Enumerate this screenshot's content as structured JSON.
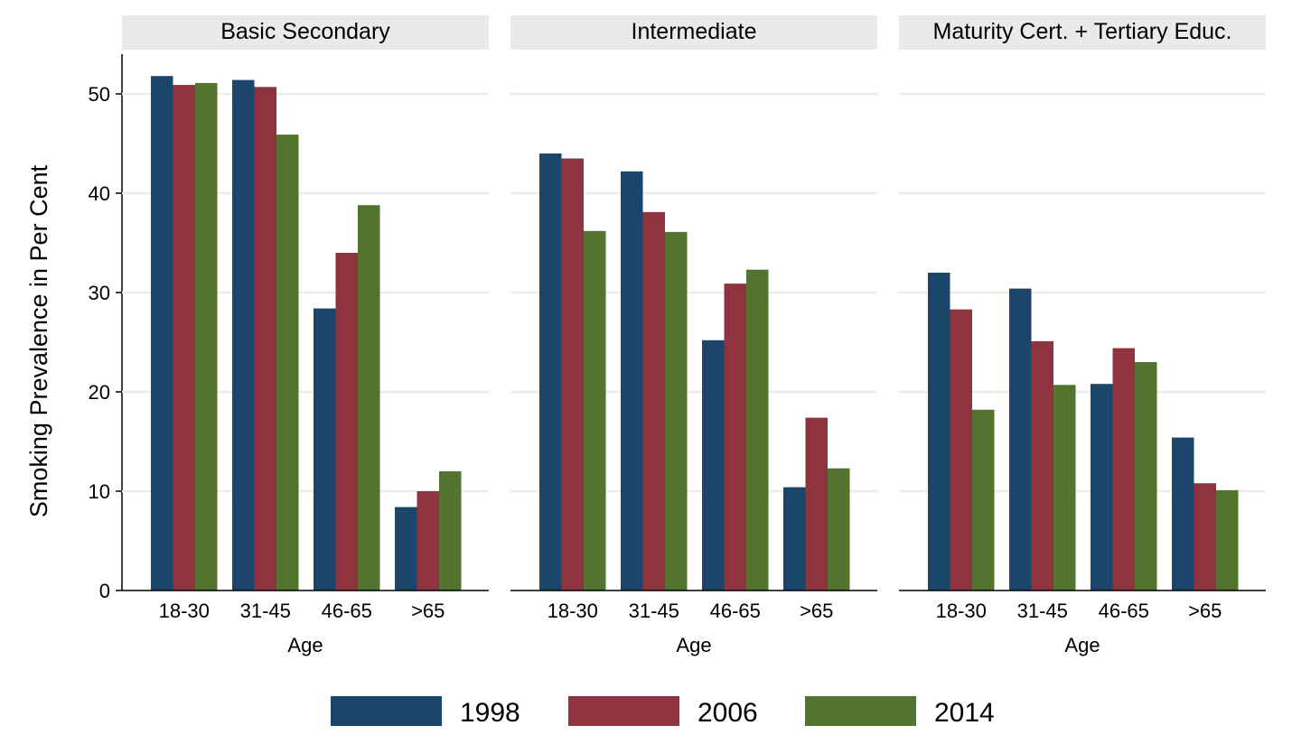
{
  "chart_data": {
    "type": "bar",
    "ylabel": "Smoking Prevalence in Per Cent",
    "ylim": [
      0,
      54
    ],
    "yticks": [
      0,
      10,
      20,
      30,
      40,
      50
    ],
    "grid": true,
    "legend_position": "bottom",
    "colors": {
      "1998": "#1c456b",
      "2006": "#8f343e",
      "2014": "#52742e"
    },
    "series_names": [
      "1998",
      "2006",
      "2014"
    ],
    "panels": [
      {
        "title": "Basic Secondary",
        "xlabel": "Age",
        "categories": [
          "18-30",
          "31-45",
          "46-65",
          ">65"
        ],
        "series": [
          {
            "name": "1998",
            "values": [
              51.8,
              51.4,
              28.4,
              8.4
            ]
          },
          {
            "name": "2006",
            "values": [
              50.9,
              50.7,
              34.0,
              10.0
            ]
          },
          {
            "name": "2014",
            "values": [
              51.1,
              45.9,
              38.8,
              12.0
            ]
          }
        ]
      },
      {
        "title": "Intermediate",
        "xlabel": "Age",
        "categories": [
          "18-30",
          "31-45",
          "46-65",
          ">65"
        ],
        "series": [
          {
            "name": "1998",
            "values": [
              44.0,
              42.2,
              25.2,
              10.4
            ]
          },
          {
            "name": "2006",
            "values": [
              43.5,
              38.1,
              30.9,
              17.4
            ]
          },
          {
            "name": "2014",
            "values": [
              36.2,
              36.1,
              32.3,
              12.3
            ]
          }
        ]
      },
      {
        "title": "Maturity Cert. + Tertiary Educ.",
        "xlabel": "Age",
        "categories": [
          "18-30",
          "31-45",
          "46-65",
          ">65"
        ],
        "series": [
          {
            "name": "1998",
            "values": [
              32.0,
              30.4,
              20.8,
              15.4
            ]
          },
          {
            "name": "2006",
            "values": [
              28.3,
              25.1,
              24.4,
              10.8
            ]
          },
          {
            "name": "2014",
            "values": [
              18.2,
              20.7,
              23.0,
              10.1
            ]
          }
        ]
      }
    ]
  }
}
